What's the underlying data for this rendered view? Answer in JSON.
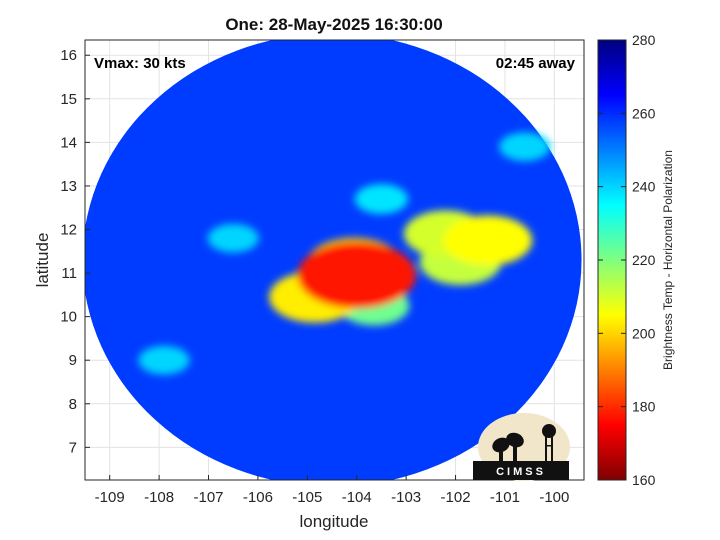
{
  "chart_data": {
    "type": "heatmap",
    "title": "One: 28-May-2025 16:30:00",
    "xlabel": "longitude",
    "ylabel": "latitude",
    "xlim": [
      -109.5,
      -99.4
    ],
    "ylim": [
      6.25,
      16.35
    ],
    "xticks": [
      -109,
      -108,
      -107,
      -106,
      -105,
      -104,
      -103,
      -102,
      -101,
      -100
    ],
    "yticks": [
      7,
      8,
      9,
      10,
      11,
      12,
      13,
      14,
      15,
      16
    ],
    "grid": true,
    "annotations": {
      "left": "Vmax: 30 kts",
      "right": "02:45 away"
    },
    "colorbar": {
      "label": "Brightness Temp - Horizontal Polarization",
      "range": [
        160,
        280
      ],
      "ticks": [
        160,
        180,
        200,
        220,
        240,
        260,
        280
      ],
      "colormap": "jet"
    },
    "swath": {
      "center": [
        -104.5,
        11.3
      ],
      "lon_radius": 5.05,
      "lat_radius": 5.2
    },
    "features": [
      {
        "name": "core-min",
        "lon": -104.0,
        "lat": 10.95,
        "tb": 178
      },
      {
        "name": "core-inner",
        "lon": -104.05,
        "lat": 11.2,
        "tb": 200
      },
      {
        "name": "band-east",
        "lon": -102.2,
        "lat": 11.9,
        "tb": 210
      },
      {
        "name": "cell-se-1",
        "lon": -101.35,
        "lat": 11.75,
        "tb": 205
      },
      {
        "name": "cell-se-2",
        "lon": -101.9,
        "lat": 11.25,
        "tb": 212
      },
      {
        "name": "cell-sw",
        "lon": -104.85,
        "lat": 10.45,
        "tb": 203
      },
      {
        "name": "cell-s",
        "lon": -103.65,
        "lat": 10.25,
        "tb": 222
      },
      {
        "name": "cell-north",
        "lon": -103.5,
        "lat": 12.7,
        "tb": 238
      },
      {
        "name": "cell-ne",
        "lon": -100.6,
        "lat": 13.9,
        "tb": 240
      },
      {
        "name": "cell-w",
        "lon": -106.5,
        "lat": 11.8,
        "tb": 240
      },
      {
        "name": "cell-sw-2",
        "lon": -107.9,
        "lat": 9.0,
        "tb": 240
      }
    ]
  },
  "logo": {
    "text": "CIMSS"
  }
}
